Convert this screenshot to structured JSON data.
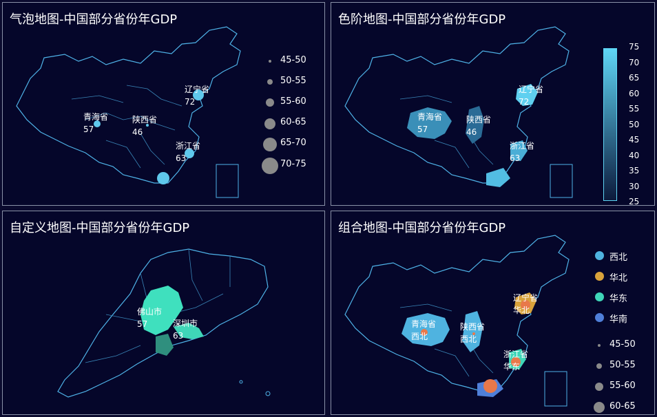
{
  "panels": [
    {
      "title": "气泡地图-中国部分省份年GDP",
      "legend": [
        "45-50",
        "50-55",
        "55-60",
        "60-65",
        "65-70",
        "70-75"
      ],
      "labels": [
        {
          "name": "辽宁省",
          "value": "72"
        },
        {
          "name": "青海省",
          "value": "57"
        },
        {
          "name": "陕西省",
          "value": "46"
        },
        {
          "name": "浙江省",
          "value": "63"
        }
      ]
    },
    {
      "title": "色阶地图-中国部分省份年GDP",
      "visualmap_ticks": [
        "75",
        "70",
        "65",
        "60",
        "55",
        "50",
        "45",
        "40",
        "35",
        "30",
        "25"
      ],
      "labels": [
        {
          "name": "辽宁省",
          "value": "72"
        },
        {
          "name": "青海省",
          "value": "57"
        },
        {
          "name": "陕西省",
          "value": "46"
        },
        {
          "name": "浙江省",
          "value": "63"
        }
      ]
    },
    {
      "title": "自定义地图-中国部分省份年GDP",
      "labels": [
        {
          "name": "佛山市",
          "value": "57"
        },
        {
          "name": "深圳市",
          "value": "63"
        }
      ]
    },
    {
      "title": "组合地图-中国部分省份年GDP",
      "region_legend": [
        "西北",
        "华北",
        "华东",
        "华南"
      ],
      "size_legend": [
        "45-50",
        "50-55",
        "55-60",
        "60-65"
      ],
      "labels": [
        {
          "name": "辽宁省",
          "value": "华北"
        },
        {
          "name": "青海省",
          "value": "西北"
        },
        {
          "name": "陕西省",
          "value": "西北"
        },
        {
          "name": "浙江省",
          "value": "华东"
        }
      ]
    }
  ],
  "colors": {
    "background": "#05062a",
    "border": "#4fb3e8",
    "bubble": "#5fc8ec",
    "legend_dot": "#8a8a8a",
    "xibei": "#4fb3e0",
    "huabei": "#d9a23b",
    "huadong": "#3fd6b8",
    "huanan": "#4f7fd9",
    "orange": "#e8784a"
  },
  "chart_data": [
    {
      "type": "scatter",
      "title": "气泡地图-中国部分省份年GDP",
      "points": [
        {
          "name": "辽宁省",
          "value": 72
        },
        {
          "name": "青海省",
          "value": 57
        },
        {
          "name": "陕西省",
          "value": 46
        },
        {
          "name": "浙江省",
          "value": 63
        }
      ],
      "legend": [
        "45-50",
        "50-55",
        "55-60",
        "60-65",
        "65-70",
        "70-75"
      ]
    },
    {
      "type": "heatmap",
      "title": "色阶地图-中国部分省份年GDP",
      "regions": [
        {
          "name": "辽宁省",
          "value": 72
        },
        {
          "name": "青海省",
          "value": 57
        },
        {
          "name": "陕西省",
          "value": 46
        },
        {
          "name": "浙江省",
          "value": 63
        }
      ],
      "range": [
        25,
        75
      ]
    },
    {
      "type": "heatmap",
      "title": "自定义地图-中国部分省份年GDP",
      "regions": [
        {
          "name": "佛山市",
          "value": 57
        },
        {
          "name": "深圳市",
          "value": 63
        }
      ]
    },
    {
      "type": "scatter",
      "title": "组合地图-中国部分省份年GDP",
      "regions": [
        {
          "name": "辽宁省",
          "group": "华北"
        },
        {
          "name": "青海省",
          "group": "西北"
        },
        {
          "name": "陕西省",
          "group": "西北"
        },
        {
          "name": "浙江省",
          "group": "华东"
        }
      ],
      "legend": [
        "西北",
        "华北",
        "华东",
        "华南"
      ]
    }
  ]
}
